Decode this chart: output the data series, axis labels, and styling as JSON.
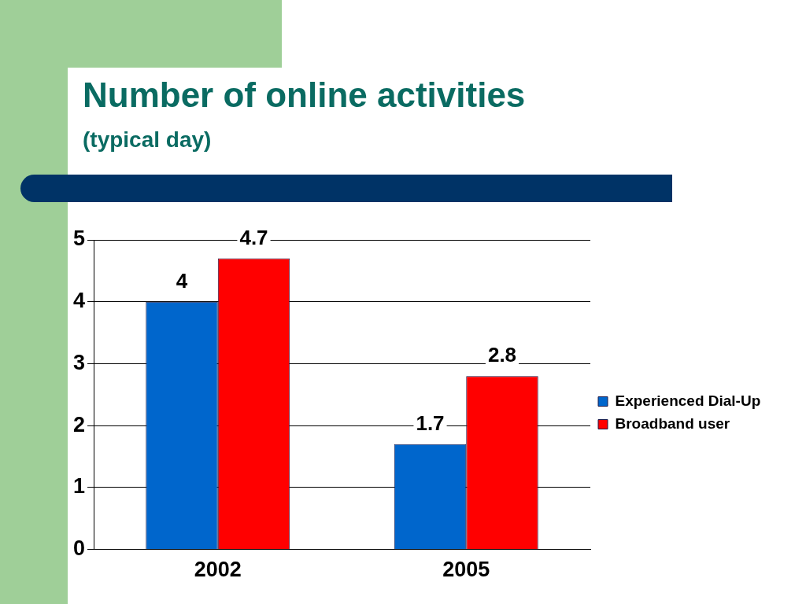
{
  "chart_data": {
    "type": "bar",
    "title": "Number of online activities",
    "subtitle": "(typical day)",
    "categories": [
      "2002",
      "2005"
    ],
    "series": [
      {
        "name": "Experienced Dial-Up",
        "color": "#0066cc",
        "values": [
          4,
          1.7
        ]
      },
      {
        "name": "Broadband user",
        "color": "#ff0000",
        "values": [
          4.7,
          2.8
        ]
      }
    ],
    "ylim": [
      0,
      5
    ],
    "yticks": [
      0,
      1,
      2,
      3,
      4,
      5
    ],
    "grid": "y",
    "legend": "right",
    "data_labels": true
  }
}
